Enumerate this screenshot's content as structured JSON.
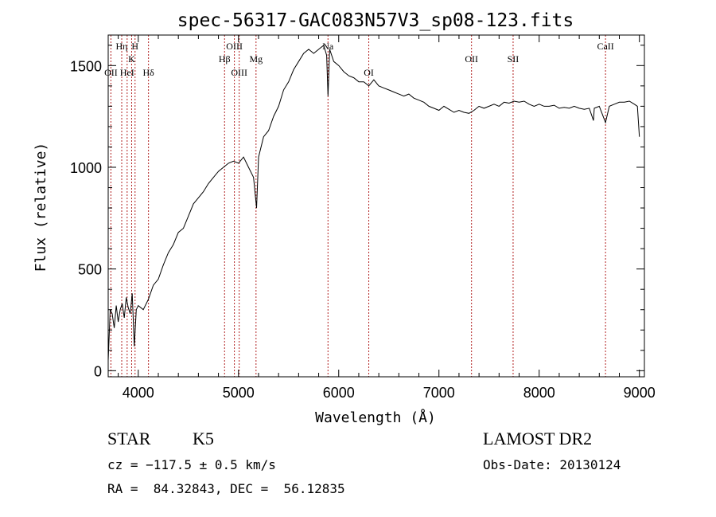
{
  "chart_data": {
    "type": "line",
    "title": "spec-56317-GAC083N57V3_sp08-123.fits",
    "xlabel": "Wavelength (Å)",
    "ylabel": "Flux (relative)",
    "xlim": [
      3700,
      9050
    ],
    "ylim": [
      -30,
      1650
    ],
    "xticks": [
      4000,
      5000,
      6000,
      7000,
      8000,
      9000
    ],
    "xtick_labels": [
      "4000",
      "5000",
      "6000",
      "7000",
      "8000",
      "9000"
    ],
    "yticks": [
      0,
      500,
      1000,
      1500
    ],
    "ytick_labels": [
      "0",
      "500",
      "1000",
      "1500"
    ],
    "grid": false,
    "line_color": "#000000",
    "marker_color": "#b22222",
    "series": [
      {
        "x": [
          3700,
          3720,
          3740,
          3760,
          3780,
          3800,
          3820,
          3840,
          3860,
          3880,
          3900,
          3920,
          3940,
          3960,
          3980,
          4000,
          4050,
          4100,
          4150,
          4200,
          4250,
          4300,
          4350,
          4400,
          4450,
          4500,
          4550,
          4600,
          4650,
          4700,
          4750,
          4800,
          4850,
          4900,
          4950,
          5000,
          5050,
          5100,
          5150,
          5180,
          5200,
          5250,
          5300,
          5350,
          5400,
          5450,
          5500,
          5550,
          5600,
          5650,
          5700,
          5750,
          5800,
          5850,
          5880,
          5893,
          5910,
          5950,
          6000,
          6050,
          6100,
          6150,
          6200,
          6250,
          6300,
          6350,
          6400,
          6450,
          6500,
          6550,
          6600,
          6650,
          6700,
          6750,
          6800,
          6850,
          6900,
          6950,
          7000,
          7050,
          7100,
          7150,
          7200,
          7250,
          7300,
          7350,
          7400,
          7450,
          7500,
          7550,
          7600,
          7650,
          7700,
          7750,
          7800,
          7850,
          7900,
          7950,
          8000,
          8050,
          8100,
          8150,
          8200,
          8250,
          8300,
          8350,
          8400,
          8450,
          8500,
          8542,
          8550,
          8600,
          8662,
          8700,
          8750,
          8800,
          8850,
          8900,
          8950,
          8980,
          9000
        ],
        "y": [
          50,
          300,
          280,
          210,
          320,
          240,
          300,
          330,
          260,
          360,
          310,
          280,
          380,
          120,
          300,
          320,
          300,
          350,
          420,
          450,
          520,
          580,
          620,
          680,
          700,
          760,
          820,
          850,
          880,
          920,
          950,
          980,
          1000,
          1020,
          1030,
          1020,
          1050,
          1000,
          950,
          800,
          1050,
          1150,
          1180,
          1250,
          1300,
          1380,
          1420,
          1480,
          1520,
          1560,
          1580,
          1560,
          1580,
          1600,
          1550,
          1350,
          1580,
          1520,
          1500,
          1470,
          1450,
          1440,
          1420,
          1420,
          1400,
          1430,
          1400,
          1390,
          1380,
          1370,
          1360,
          1350,
          1360,
          1340,
          1330,
          1320,
          1300,
          1290,
          1280,
          1300,
          1285,
          1270,
          1280,
          1270,
          1265,
          1280,
          1300,
          1290,
          1300,
          1310,
          1300,
          1320,
          1315,
          1325,
          1320,
          1325,
          1310,
          1300,
          1310,
          1300,
          1300,
          1305,
          1290,
          1295,
          1290,
          1300,
          1290,
          1285,
          1290,
          1230,
          1290,
          1300,
          1220,
          1300,
          1310,
          1320,
          1320,
          1325,
          1310,
          1300,
          1150
        ]
      }
    ],
    "line_markers": [
      {
        "label": "OII",
        "x": 3727,
        "row": 3
      },
      {
        "label": "Hη",
        "x": 3835,
        "row": 1
      },
      {
        "label": "H",
        "x": 3968,
        "row": 1
      },
      {
        "label": "K",
        "x": 3934,
        "row": 2
      },
      {
        "label": "HeI",
        "x": 3889,
        "row": 3
      },
      {
        "label": "Hδ",
        "x": 4102,
        "row": 3
      },
      {
        "label": "Hβ",
        "x": 4861,
        "row": 2
      },
      {
        "label": "OIII",
        "x": 4959,
        "row": 1
      },
      {
        "label": "OIII",
        "x": 5007,
        "row": 3
      },
      {
        "label": "Mg",
        "x": 5175,
        "row": 2
      },
      {
        "label": "Na",
        "x": 5893,
        "row": 1
      },
      {
        "label": "OI",
        "x": 6300,
        "row": 3
      },
      {
        "label": "OII",
        "x": 7325,
        "row": 2
      },
      {
        "label": "SII",
        "x": 7740,
        "row": 2
      },
      {
        "label": "CaII",
        "x": 8662,
        "row": 1
      }
    ]
  },
  "info": {
    "object_class": "STAR",
    "subclass": "K5",
    "survey": "LAMOST DR2",
    "redshift_text": "cz = −117.5 ± 0.5 km/s",
    "obs_date_text": "Obs-Date: 20130124",
    "coords_text": "RA =  84.32843, DEC =  56.12835"
  }
}
